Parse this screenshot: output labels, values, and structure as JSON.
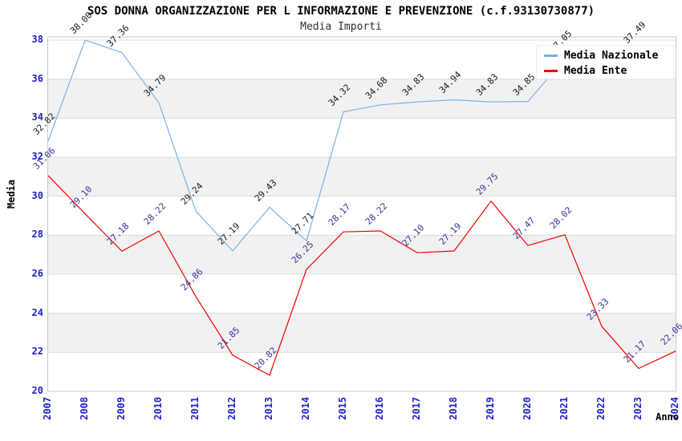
{
  "chart_data": {
    "type": "line",
    "title": "SOS DONNA ORGANIZZAZIONE PER L INFORMAZIONE E PREVENZIONE (c.f.93130730877)",
    "subtitle": "Media Importi",
    "xlabel": "Anno",
    "ylabel": "Media",
    "x": [
      "2007",
      "2008",
      "2009",
      "2010",
      "2011",
      "2012",
      "2013",
      "2014",
      "2015",
      "2016",
      "2017",
      "2018",
      "2019",
      "2020",
      "2021",
      "2022",
      "2023",
      "2024"
    ],
    "yticks": [
      38,
      36,
      34,
      32,
      30,
      28,
      26,
      24,
      22,
      20
    ],
    "ylim": [
      20,
      38.2
    ],
    "grid": "horizontal-bands",
    "legend_position": "top-right",
    "band_color": "#f1f1f1",
    "grid_color": "#dcdcdc",
    "border_color": "#c9c9c9",
    "tick_color": "#2121cc",
    "series": [
      {
        "name": "Media Nazionale",
        "color": "#7cb0e2",
        "label_color": "#1a1a1a",
        "values": [
          32.82,
          38.0,
          37.36,
          34.79,
          29.24,
          27.19,
          29.43,
          27.71,
          34.32,
          34.68,
          34.83,
          34.94,
          34.83,
          34.85,
          37.05,
          null,
          37.49,
          null
        ]
      },
      {
        "name": "Media Ente",
        "color": "#f40000",
        "label_color": "#333399",
        "values": [
          31.06,
          29.1,
          27.18,
          28.22,
          24.86,
          21.85,
          20.82,
          26.25,
          28.17,
          28.22,
          27.1,
          27.19,
          29.75,
          27.47,
          28.02,
          23.33,
          21.17,
          22.06
        ]
      }
    ]
  }
}
